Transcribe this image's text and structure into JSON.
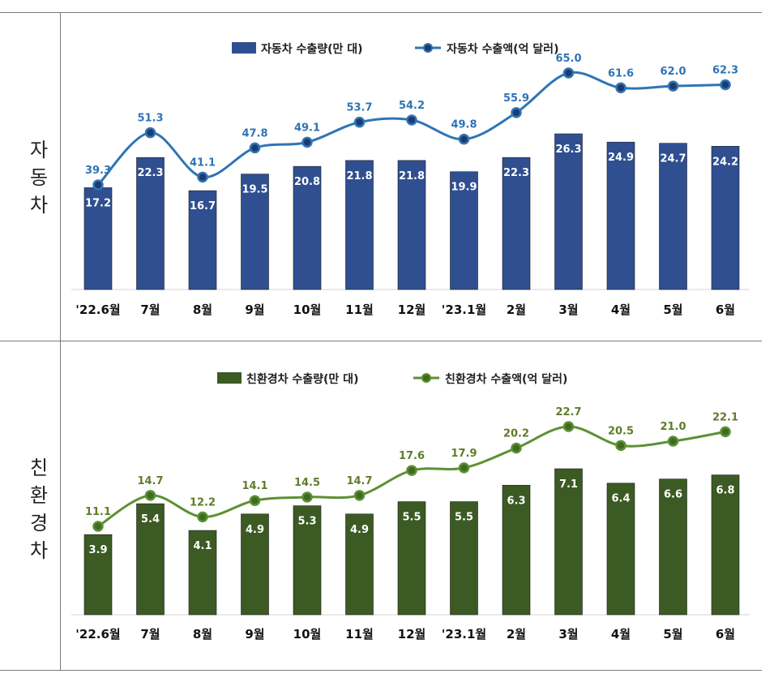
{
  "sections": [
    {
      "row_label": "자동차"
    },
    {
      "row_label": "친환경차"
    }
  ],
  "chart_data": [
    {
      "type": "bar+line",
      "categories": [
        "'22.6월",
        "7월",
        "8월",
        "9월",
        "10월",
        "11월",
        "12월",
        "'23.1월",
        "2월",
        "3월",
        "4월",
        "5월",
        "6월"
      ],
      "series": [
        {
          "name": "자동차 수출량(만 대)",
          "kind": "bar",
          "values": [
            17.2,
            22.3,
            16.7,
            19.5,
            20.8,
            21.8,
            21.8,
            19.9,
            22.3,
            26.3,
            24.9,
            24.7,
            24.2
          ]
        },
        {
          "name": "자동차 수출액(억 달러)",
          "kind": "line",
          "values": [
            39.3,
            51.3,
            41.1,
            47.8,
            49.1,
            53.7,
            54.2,
            49.8,
            55.9,
            65.0,
            61.6,
            62.0,
            62.3
          ]
        }
      ],
      "legend": "top-center",
      "bar_color": "#2f4f91",
      "line_color": "#2f74b5",
      "marker_color": "#1e3b6e",
      "line_label_color": "#2f74b5"
    },
    {
      "type": "bar+line",
      "categories": [
        "'22.6월",
        "7월",
        "8월",
        "9월",
        "10월",
        "11월",
        "12월",
        "'23.1월",
        "2월",
        "3월",
        "4월",
        "5월",
        "6월"
      ],
      "series": [
        {
          "name": "친환경차 수출량(만 대)",
          "kind": "bar",
          "values": [
            3.9,
            5.4,
            4.1,
            4.9,
            5.3,
            4.9,
            5.5,
            5.5,
            6.3,
            7.1,
            6.4,
            6.6,
            6.8
          ]
        },
        {
          "name": "친환경차 수출액(억 달러)",
          "kind": "line",
          "values": [
            11.1,
            14.7,
            12.2,
            14.1,
            14.5,
            14.7,
            17.6,
            17.9,
            20.2,
            22.7,
            20.5,
            21.0,
            22.1
          ]
        }
      ],
      "legend": "top-center",
      "bar_color": "#3c5a23",
      "line_color": "#5d9034",
      "marker_color": "#3f6b1f",
      "line_label_color": "#5e7d2a"
    }
  ]
}
